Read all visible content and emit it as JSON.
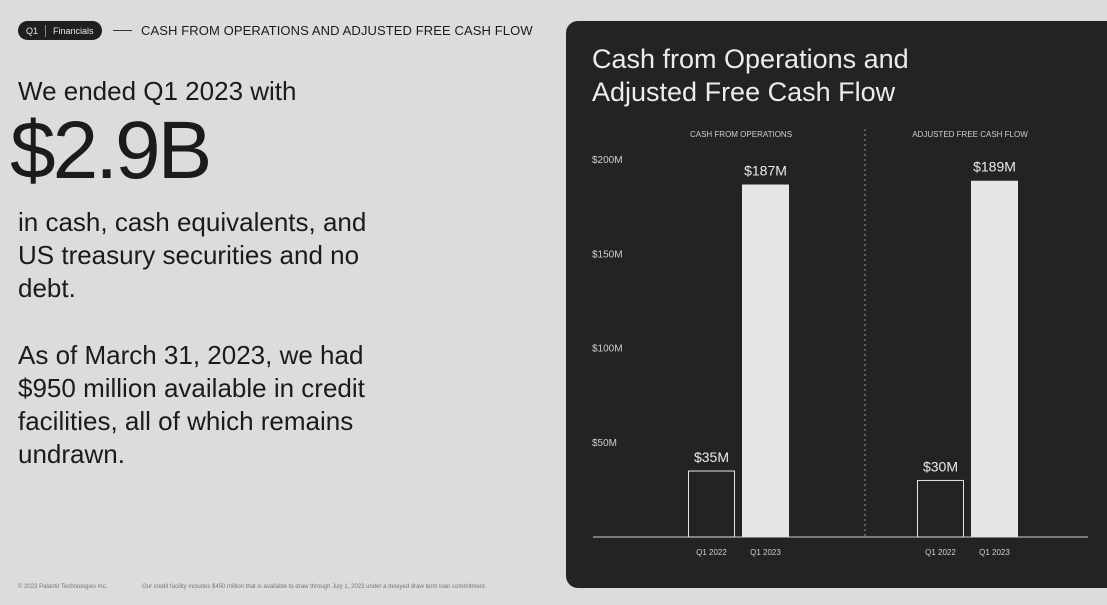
{
  "header": {
    "badge_quarter": "Q1",
    "badge_section": "Financials",
    "title": "CASH FROM OPERATIONS AND ADJUSTED FREE CASH FLOW"
  },
  "left": {
    "intro": "We ended Q1 2023 with",
    "amount": "$2.9B",
    "para1": "in cash, cash equivalents, and US treasury securities and no debt.",
    "para2": "As of March 31, 2023, we had $950 million available in credit facilities, all of which remains undrawn."
  },
  "footer": {
    "copyright": "© 2023 Palantir Technologies Inc.",
    "note": "Our credit facility includes $450 million that is available to draw through July 1, 2023 under a delayed draw term loan commitment."
  },
  "panel": {
    "title": "Cash from Operations and Adjusted Free Cash Flow"
  },
  "colors": {
    "background": "#dcdcdc",
    "panel": "#222323",
    "bar_fill": "#e6e6e6"
  },
  "chart_data": {
    "type": "bar",
    "title": "Cash from Operations and Adjusted Free Cash Flow",
    "ylim": [
      0,
      200
    ],
    "y_ticks": [
      {
        "value": 200,
        "label": "$200M"
      },
      {
        "value": 150,
        "label": "$150M"
      },
      {
        "value": 100,
        "label": "$100M"
      },
      {
        "value": 50,
        "label": "$50M"
      }
    ],
    "grid": false,
    "panels": [
      {
        "title": "CASH FROM OPERATIONS",
        "categories": [
          "Q1 2022",
          "Q1 2023"
        ],
        "values": [
          35,
          187
        ],
        "labels": [
          "$35M",
          "$187M"
        ],
        "styles": [
          "outline",
          "filled"
        ]
      },
      {
        "title": "ADJUSTED FREE CASH FLOW",
        "categories": [
          "Q1 2022",
          "Q1 2023"
        ],
        "values": [
          30,
          189
        ],
        "labels": [
          "$30M",
          "$189M"
        ],
        "styles": [
          "outline",
          "filled"
        ]
      }
    ]
  }
}
